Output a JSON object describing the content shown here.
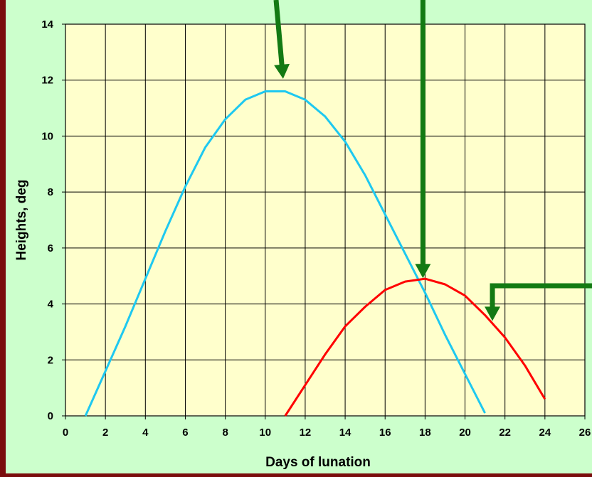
{
  "colors": {
    "frame": "#7a0d0d",
    "chart_bg": "#ccffcc",
    "plot_bg": "#ffffcc",
    "series_blue": "#1ec8f0",
    "series_red": "#ff0000",
    "arrow": "#137a13",
    "grid": "#000000"
  },
  "chart_data": {
    "type": "line",
    "title": "",
    "xlabel": "Days of lunation",
    "ylabel": "Heights, deg",
    "xlim": [
      0,
      26
    ],
    "ylim": [
      0,
      14
    ],
    "x_ticks": [
      0,
      2,
      4,
      6,
      8,
      10,
      12,
      14,
      16,
      18,
      20,
      22,
      24,
      26
    ],
    "y_ticks": [
      0,
      2,
      4,
      6,
      8,
      10,
      12,
      14
    ],
    "grid": true,
    "legend": "none",
    "series": [
      {
        "color": "#1ec8f0",
        "points": [
          [
            1,
            0
          ],
          [
            2,
            1.6
          ],
          [
            3,
            3.2
          ],
          [
            4,
            4.9
          ],
          [
            5,
            6.6
          ],
          [
            6,
            8.2
          ],
          [
            7,
            9.6
          ],
          [
            8,
            10.6
          ],
          [
            9,
            11.3
          ],
          [
            10,
            11.6
          ],
          [
            11,
            11.6
          ],
          [
            12,
            11.3
          ],
          [
            13,
            10.7
          ],
          [
            14,
            9.8
          ],
          [
            15,
            8.6
          ],
          [
            16,
            7.2
          ],
          [
            17,
            5.8
          ],
          [
            18,
            4.4
          ],
          [
            19,
            2.9
          ],
          [
            20,
            1.5
          ],
          [
            21,
            0.1
          ]
        ]
      },
      {
        "color": "#ff0000",
        "points": [
          [
            11,
            0
          ],
          [
            12,
            1.1
          ],
          [
            13,
            2.2
          ],
          [
            14,
            3.2
          ],
          [
            15,
            3.9
          ],
          [
            16,
            4.5
          ],
          [
            17,
            4.8
          ],
          [
            18,
            4.9
          ],
          [
            19,
            4.7
          ],
          [
            20,
            4.3
          ],
          [
            21,
            3.6
          ],
          [
            22,
            2.8
          ],
          [
            23,
            1.8
          ],
          [
            24,
            0.6
          ]
        ]
      }
    ],
    "annotations": [
      {
        "type": "arrow",
        "target": [
          11,
          12
        ],
        "from": "top"
      },
      {
        "type": "arrow",
        "target": [
          18,
          5
        ],
        "from": "top"
      },
      {
        "type": "arrow",
        "target": [
          21.3,
          3.6
        ],
        "from": "right"
      }
    ]
  }
}
